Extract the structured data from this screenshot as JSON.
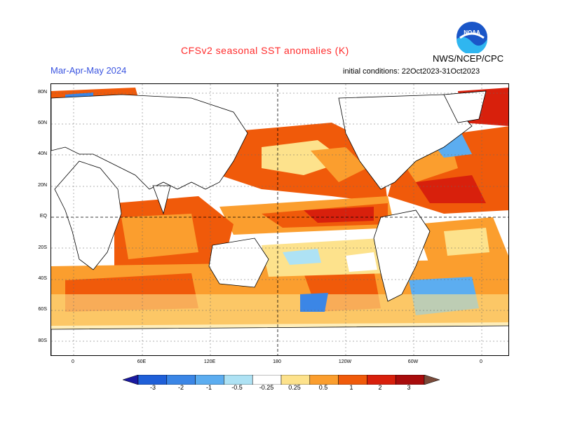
{
  "header": {
    "title": "CFSv2 seasonal SST anomalies (K)",
    "season": "Mar-Apr-May 2024",
    "initial_conditions": "initial conditions: 22Oct2023-31Oct2023",
    "agency": "NWS/NCEP/CPC",
    "title_color": "#ff2a2a",
    "season_color": "#3a54e0"
  },
  "map": {
    "lat_labels": [
      "80N",
      "60N",
      "40N",
      "20N",
      "EQ",
      "20S",
      "40S",
      "60S",
      "80S"
    ],
    "lon_labels": [
      "0",
      "60E",
      "120E",
      "180",
      "120W",
      "60W",
      "0"
    ],
    "projection": "cylindrical equidistant, 0-360 longitude",
    "reference_lines": "dashed equator and dateline"
  },
  "colorbar": {
    "labels": [
      "-3",
      "-2",
      "-1",
      "-0.5",
      "-0.25",
      "0.25",
      "0.5",
      "1",
      "2",
      "3"
    ],
    "bins": [
      {
        "color": "#1a1aa0"
      },
      {
        "color": "#1f5fd8"
      },
      {
        "color": "#3b86e6"
      },
      {
        "color": "#5cadf0"
      },
      {
        "color": "#aee2f4"
      },
      {
        "color": "#ffffff"
      },
      {
        "color": "#fde28c"
      },
      {
        "color": "#fb9e2e"
      },
      {
        "color": "#f05a0a"
      },
      {
        "color": "#d8200c"
      },
      {
        "color": "#a80c0c"
      },
      {
        "color": "#7a4a3a"
      }
    ]
  },
  "logo": {
    "icon": "noaa-logo",
    "text": "NOAA"
  }
}
